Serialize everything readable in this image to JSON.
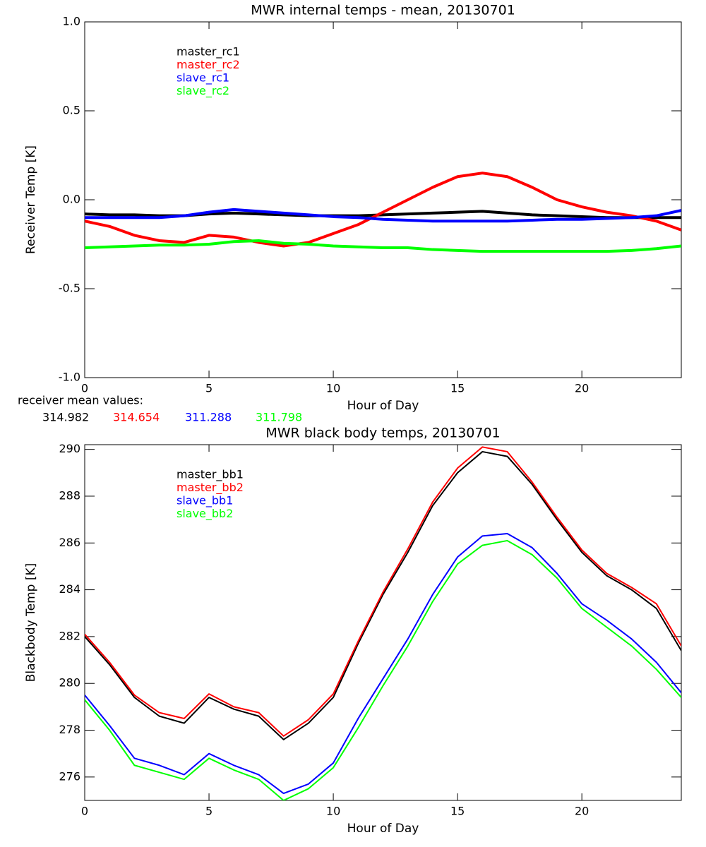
{
  "chart_data": [
    {
      "type": "line",
      "title": "MWR internal temps - mean, 20130701",
      "xlabel": "Hour of Day",
      "ylabel": "Receiver Temp [K]",
      "xlim": [
        0,
        24
      ],
      "ylim": [
        -1,
        1
      ],
      "xticks": [
        0,
        5,
        10,
        15,
        20
      ],
      "yticks": [
        {
          "value": -1,
          "label": "-1.0"
        },
        {
          "value": -0.5,
          "label": "-0.5"
        },
        {
          "value": 0,
          "label": "0.0"
        },
        0.5,
        {
          "value": 1,
          "label": "1.0"
        }
      ],
      "x": [
        0,
        1,
        2,
        3,
        4,
        5,
        6,
        7,
        8,
        9,
        10,
        11,
        12,
        13,
        14,
        15,
        16,
        17,
        18,
        19,
        20,
        21,
        22,
        23,
        24
      ],
      "series": [
        {
          "name": "master_rc1",
          "color": "#000000",
          "values": [
            -0.08,
            -0.085,
            -0.085,
            -0.09,
            -0.09,
            -0.08,
            -0.075,
            -0.08,
            -0.085,
            -0.09,
            -0.09,
            -0.09,
            -0.085,
            -0.08,
            -0.075,
            -0.07,
            -0.065,
            -0.075,
            -0.085,
            -0.09,
            -0.095,
            -0.1,
            -0.1,
            -0.1,
            -0.1
          ]
        },
        {
          "name": "master_rc2",
          "color": "#ff0000",
          "values": [
            -0.12,
            -0.15,
            -0.2,
            -0.23,
            -0.24,
            -0.2,
            -0.21,
            -0.24,
            -0.26,
            -0.24,
            -0.19,
            -0.14,
            -0.07,
            0.0,
            0.07,
            0.13,
            0.15,
            0.13,
            0.07,
            0.0,
            -0.04,
            -0.07,
            -0.09,
            -0.12,
            -0.17
          ]
        },
        {
          "name": "slave_rc1",
          "color": "#0000ff",
          "values": [
            -0.1,
            -0.1,
            -0.1,
            -0.1,
            -0.09,
            -0.07,
            -0.055,
            -0.065,
            -0.075,
            -0.085,
            -0.095,
            -0.1,
            -0.11,
            -0.115,
            -0.12,
            -0.12,
            -0.12,
            -0.12,
            -0.115,
            -0.11,
            -0.11,
            -0.105,
            -0.1,
            -0.09,
            -0.06
          ]
        },
        {
          "name": "slave_rc2",
          "color": "#00ff00",
          "values": [
            -0.27,
            -0.265,
            -0.26,
            -0.255,
            -0.255,
            -0.25,
            -0.235,
            -0.23,
            -0.245,
            -0.25,
            -0.26,
            -0.265,
            -0.27,
            -0.27,
            -0.28,
            -0.285,
            -0.29,
            -0.29,
            -0.29,
            -0.29,
            -0.29,
            -0.29,
            -0.285,
            -0.275,
            -0.26
          ]
        }
      ],
      "annotation": "receiver mean values:",
      "mean_values": [
        314.982,
        314.654,
        311.288,
        311.798
      ]
    },
    {
      "type": "line",
      "title": "MWR black body temps, 20130701",
      "xlabel": "Hour of Day",
      "ylabel": "Blackbody Temp [K]",
      "xlim": [
        0,
        24
      ],
      "ylim": [
        275,
        290.2
      ],
      "xticks": [
        0,
        5,
        10,
        15,
        20
      ],
      "yticks": [
        276,
        278,
        280,
        282,
        284,
        286,
        288,
        290
      ],
      "x": [
        0,
        1,
        2,
        3,
        4,
        5,
        6,
        7,
        8,
        9,
        10,
        11,
        12,
        13,
        14,
        15,
        16,
        17,
        18,
        19,
        20,
        21,
        22,
        23,
        24
      ],
      "series": [
        {
          "name": "master_bb1",
          "color": "#000000",
          "values": [
            282.0,
            280.8,
            279.4,
            278.6,
            278.3,
            279.4,
            278.9,
            278.6,
            277.6,
            278.3,
            279.4,
            281.7,
            283.8,
            285.6,
            287.6,
            289.0,
            289.9,
            289.7,
            288.5,
            287.0,
            285.6,
            284.6,
            284.0,
            283.2,
            281.4
          ]
        },
        {
          "name": "master_bb2",
          "color": "#ff0000",
          "values": [
            282.1,
            280.9,
            279.5,
            278.75,
            278.5,
            279.55,
            279.0,
            278.75,
            277.75,
            278.45,
            279.55,
            281.8,
            283.9,
            285.75,
            287.75,
            289.2,
            290.1,
            289.9,
            288.6,
            287.1,
            285.7,
            284.7,
            284.1,
            283.4,
            281.6
          ]
        },
        {
          "name": "slave_bb1",
          "color": "#0000ff",
          "values": [
            279.5,
            278.2,
            276.8,
            276.5,
            276.1,
            277.0,
            276.5,
            276.1,
            275.3,
            275.7,
            276.6,
            278.5,
            280.2,
            281.9,
            283.8,
            285.4,
            286.3,
            286.4,
            285.8,
            284.7,
            283.4,
            282.7,
            281.9,
            280.9,
            279.6
          ]
        },
        {
          "name": "slave_bb2",
          "color": "#00ff00",
          "values": [
            279.3,
            278.0,
            276.5,
            276.2,
            275.9,
            276.8,
            276.3,
            275.9,
            275.0,
            275.5,
            276.4,
            278.1,
            279.9,
            281.6,
            283.5,
            285.1,
            285.9,
            286.1,
            285.5,
            284.5,
            283.2,
            282.4,
            281.6,
            280.6,
            279.4
          ]
        }
      ]
    }
  ]
}
